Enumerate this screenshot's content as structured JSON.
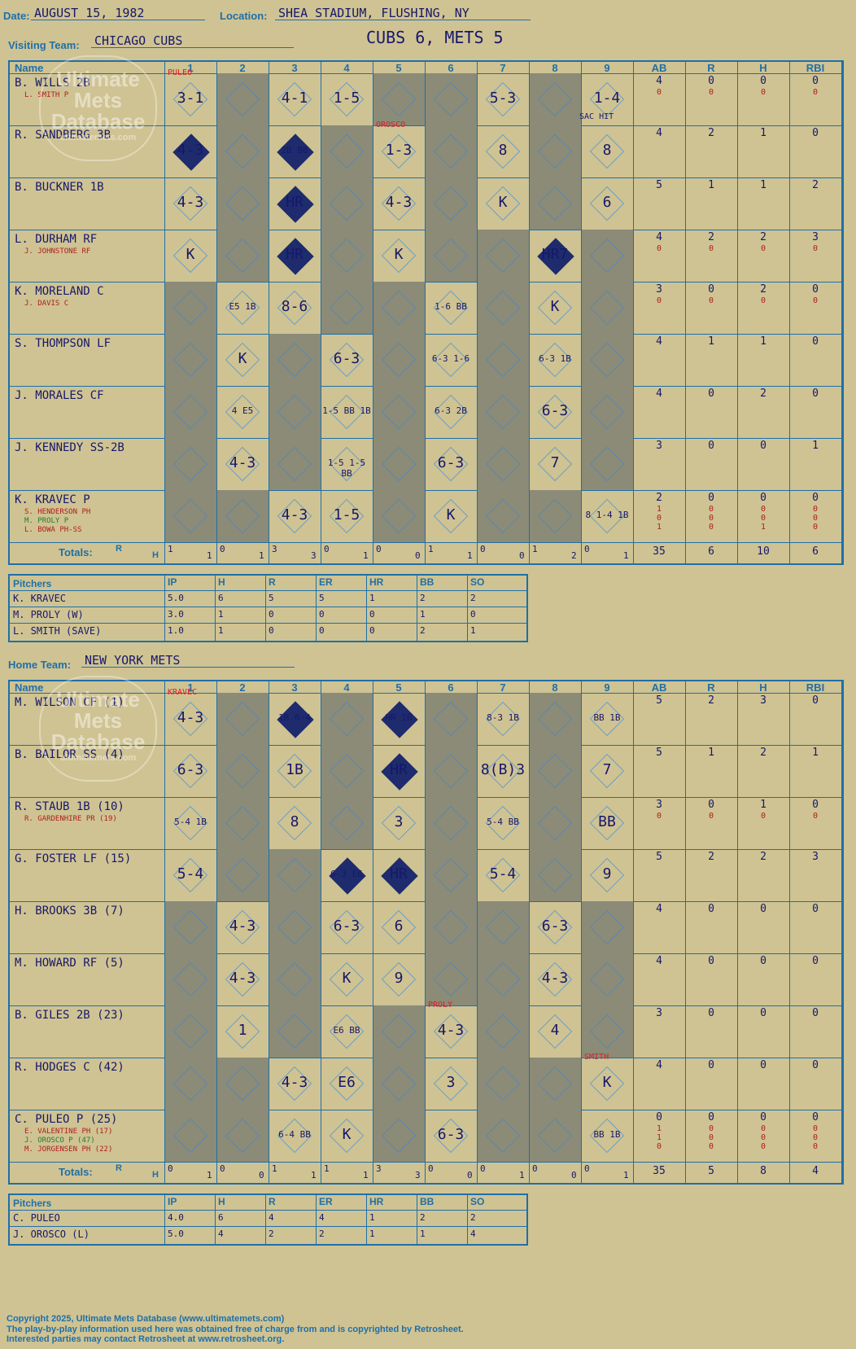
{
  "header": {
    "date_label": "Date:",
    "date": "AUGUST 15, 1982",
    "location_label": "Location:",
    "location": "SHEA STADIUM, FLUSHING, NY",
    "visiting_label": "Visiting Team:",
    "visiting_team": "CHICAGO CUBS",
    "home_label": "Home Team:",
    "home_team": "NEW YORK METS",
    "result": "CUBS 6, METS 5"
  },
  "logo": {
    "line1": "Ultimate",
    "line2": "Mets",
    "line3": "Database",
    "url": "ultimatemets.com"
  },
  "columns": {
    "name": "Name",
    "innings": [
      "1",
      "2",
      "3",
      "4",
      "5",
      "6",
      "7",
      "8",
      "9"
    ],
    "ab": "AB",
    "r": "R",
    "h": "H",
    "rbi": "RBI",
    "totals": "Totals:",
    "rh_r": "R",
    "rh_h": "H"
  },
  "visitors": {
    "batters": [
      {
        "name": "B. WILLS 2B",
        "subs": [
          "L. SMITH P"
        ],
        "ab": "4",
        "r": "0",
        "h": "0",
        "rbi": "0",
        "sub_stats": [
          [
            "0",
            "0",
            "0",
            "0"
          ]
        ]
      },
      {
        "name": "R. SANDBERG 3B",
        "subs": [],
        "ab": "4",
        "r": "2",
        "h": "1",
        "rbi": "0",
        "sub_stats": []
      },
      {
        "name": "B. BUCKNER 1B",
        "subs": [],
        "ab": "5",
        "r": "1",
        "h": "1",
        "rbi": "2",
        "sub_stats": []
      },
      {
        "name": "L. DURHAM RF",
        "subs": [
          "J. JOHNSTONE RF"
        ],
        "ab": "4",
        "r": "2",
        "h": "2",
        "rbi": "3",
        "sub_stats": [
          [
            "0",
            "0",
            "0",
            "0"
          ]
        ]
      },
      {
        "name": "K. MORELAND C",
        "subs": [
          "J. DAVIS C"
        ],
        "ab": "3",
        "r": "0",
        "h": "2",
        "rbi": "0",
        "sub_stats": [
          [
            "0",
            "0",
            "0",
            "0"
          ]
        ]
      },
      {
        "name": "S. THOMPSON LF",
        "subs": [],
        "ab": "4",
        "r": "1",
        "h": "1",
        "rbi": "0",
        "sub_stats": []
      },
      {
        "name": "J. MORALES CF",
        "subs": [],
        "ab": "4",
        "r": "0",
        "h": "2",
        "rbi": "0",
        "sub_stats": []
      },
      {
        "name": "J. KENNEDY SS-2B",
        "subs": [],
        "ab": "3",
        "r": "0",
        "h": "0",
        "rbi": "1",
        "sub_stats": []
      },
      {
        "name": "K. KRAVEC P",
        "subs": [
          "S. HENDERSON PH",
          "M. PROLY P",
          "L. BOWA PH-SS"
        ],
        "ab": "2",
        "r": "0",
        "h": "0",
        "rbi": "0",
        "sub_stats": [
          [
            "1",
            "0",
            "0",
            "0"
          ],
          [
            "0",
            "0",
            "0",
            "0"
          ],
          [
            "1",
            "0",
            "1",
            "0"
          ]
        ]
      }
    ],
    "cells": [
      [
        "3-1",
        "",
        "4-1",
        "1-5",
        "",
        "",
        "5-3",
        "",
        "1-4"
      ],
      [
        "4-3",
        "",
        "2B BB",
        "",
        "1-3",
        "",
        "8",
        "",
        "8"
      ],
      [
        "4-3",
        "",
        "HR",
        "",
        "4-3",
        "",
        "K",
        "",
        "6"
      ],
      [
        "K",
        "",
        "HR",
        "",
        "K",
        "",
        "",
        "HR7",
        ""
      ],
      [
        "",
        "E5 1B",
        "8-6",
        "",
        "",
        "1-6 BB",
        "",
        "K",
        ""
      ],
      [
        "",
        "K",
        "",
        "6-3",
        "",
        "6-3 1-6",
        "",
        "6-3 1B",
        ""
      ],
      [
        "",
        "4 E5",
        "",
        "1-5 BB 1B",
        "",
        "6-3 2B",
        "",
        "6-3",
        ""
      ],
      [
        "",
        "4-3",
        "",
        "1-5 1-5 BB",
        "",
        "6-3",
        "",
        "7",
        ""
      ],
      [
        "",
        "",
        "4-3",
        "1-5",
        "",
        "K",
        "",
        "",
        "8 1-4 1B"
      ]
    ],
    "notes": [
      "PULEO",
      "OROSCO",
      "SAC HIT"
    ],
    "totals_rh": [
      [
        "1",
        "1"
      ],
      [
        "0",
        "1"
      ],
      [
        "3",
        "3"
      ],
      [
        "0",
        "1"
      ],
      [
        "0",
        "0"
      ],
      [
        "1",
        "1"
      ],
      [
        "0",
        "0"
      ],
      [
        "1",
        "2"
      ],
      [
        "0",
        "1"
      ]
    ],
    "totals": {
      "ab": "35",
      "r": "6",
      "h": "10",
      "rbi": "6"
    },
    "pitchers_header": {
      "label": "Pitchers",
      "cols": [
        "IP",
        "H",
        "R",
        "ER",
        "HR",
        "BB",
        "SO"
      ]
    },
    "pitchers": [
      {
        "name": "K. KRAVEC",
        "stats": [
          "5.0",
          "6",
          "5",
          "5",
          "1",
          "2",
          "2"
        ]
      },
      {
        "name": "M. PROLY (W)",
        "stats": [
          "3.0",
          "1",
          "0",
          "0",
          "0",
          "1",
          "0"
        ]
      },
      {
        "name": "L. SMITH (SAVE)",
        "stats": [
          "1.0",
          "1",
          "0",
          "0",
          "0",
          "2",
          "1"
        ]
      }
    ]
  },
  "home": {
    "batters": [
      {
        "name": "M. WILSON CF (1)",
        "subs": [],
        "ab": "5",
        "r": "2",
        "h": "3",
        "rbi": "0",
        "sub_stats": []
      },
      {
        "name": "B. BAILOR SS (4)",
        "subs": [],
        "ab": "5",
        "r": "1",
        "h": "2",
        "rbi": "1",
        "sub_stats": []
      },
      {
        "name": "R. STAUB 1B (10)",
        "subs": [
          "R. GARDENHIRE PR (19)"
        ],
        "ab": "3",
        "r": "0",
        "h": "1",
        "rbi": "0",
        "sub_stats": [
          [
            "0",
            "0",
            "0",
            "0"
          ]
        ]
      },
      {
        "name": "G. FOSTER LF (15)",
        "subs": [],
        "ab": "5",
        "r": "2",
        "h": "2",
        "rbi": "3",
        "sub_stats": []
      },
      {
        "name": "H. BROOKS 3B (7)",
        "subs": [],
        "ab": "4",
        "r": "0",
        "h": "0",
        "rbi": "0",
        "sub_stats": []
      },
      {
        "name": "M. HOWARD RF (5)",
        "subs": [],
        "ab": "4",
        "r": "0",
        "h": "0",
        "rbi": "0",
        "sub_stats": []
      },
      {
        "name": "B. GILES 2B (23)",
        "subs": [],
        "ab": "3",
        "r": "0",
        "h": "0",
        "rbi": "0",
        "sub_stats": []
      },
      {
        "name": "R. HODGES C (42)",
        "subs": [],
        "ab": "4",
        "r": "0",
        "h": "0",
        "rbi": "0",
        "sub_stats": []
      },
      {
        "name": "C. PULEO P (25)",
        "subs": [
          "E. VALENTINE PH (17)",
          "J. OROSCO P (47)",
          "M. JORGENSEN PH (22)"
        ],
        "ab": "0",
        "r": "0",
        "h": "0",
        "rbi": "0",
        "sub_stats": [
          [
            "1",
            "0",
            "0",
            "0"
          ],
          [
            "1",
            "0",
            "0",
            "0"
          ],
          [
            "0",
            "0",
            "0",
            "0"
          ]
        ]
      }
    ],
    "cells": [
      [
        "4-3",
        "",
        "1B 6-4",
        "",
        "HR 1B",
        "",
        "8-3 1B",
        "",
        "BB 1B"
      ],
      [
        "6-3",
        "",
        "1B",
        "",
        "HR",
        "",
        "8(B)3",
        "",
        "7"
      ],
      [
        "5-4 1B",
        "",
        "8",
        "",
        "3",
        "",
        "5-4 BB",
        "",
        "BB"
      ],
      [
        "5-4",
        "",
        "",
        "6-3 E6",
        "HR",
        "",
        "5-4",
        "",
        "9"
      ],
      [
        "",
        "4-3",
        "",
        "6-3",
        "6",
        "",
        "",
        "6-3",
        ""
      ],
      [
        "",
        "4-3",
        "",
        "K",
        "9",
        "",
        "",
        "4-3",
        ""
      ],
      [
        "",
        "1",
        "",
        "E6 BB",
        "",
        "4-3",
        "",
        "4",
        ""
      ],
      [
        "",
        "",
        "4-3",
        "E6",
        "",
        "3",
        "",
        "",
        "K"
      ],
      [
        "",
        "",
        "6-4 BB",
        "K",
        "",
        "6-3",
        "",
        "",
        "BB 1B"
      ]
    ],
    "notes": [
      "KRAVEC",
      "PROLY",
      "SMITH"
    ],
    "totals_rh": [
      [
        "0",
        "1"
      ],
      [
        "0",
        "0"
      ],
      [
        "1",
        "1"
      ],
      [
        "1",
        "1"
      ],
      [
        "3",
        "3"
      ],
      [
        "0",
        "0"
      ],
      [
        "0",
        "1"
      ],
      [
        "0",
        "0"
      ],
      [
        "0",
        "1"
      ]
    ],
    "totals": {
      "ab": "35",
      "r": "5",
      "h": "8",
      "rbi": "4"
    },
    "pitchers_header": {
      "label": "Pitchers",
      "cols": [
        "IP",
        "H",
        "R",
        "ER",
        "HR",
        "BB",
        "SO"
      ]
    },
    "pitchers": [
      {
        "name": "C. PULEO",
        "stats": [
          "4.0",
          "6",
          "4",
          "4",
          "1",
          "2",
          "2"
        ]
      },
      {
        "name": "J. OROSCO (L)",
        "stats": [
          "5.0",
          "4",
          "2",
          "2",
          "1",
          "1",
          "4"
        ]
      }
    ]
  },
  "footer": {
    "line1": "Copyright 2025, Ultimate Mets Database (www.ultimatemets.com)",
    "line2": "The play-by-play information used here was obtained free of charge from and is copyrighted by Retrosheet.",
    "line3": "Interested parties may contact Retrosheet at www.retrosheet.org."
  }
}
